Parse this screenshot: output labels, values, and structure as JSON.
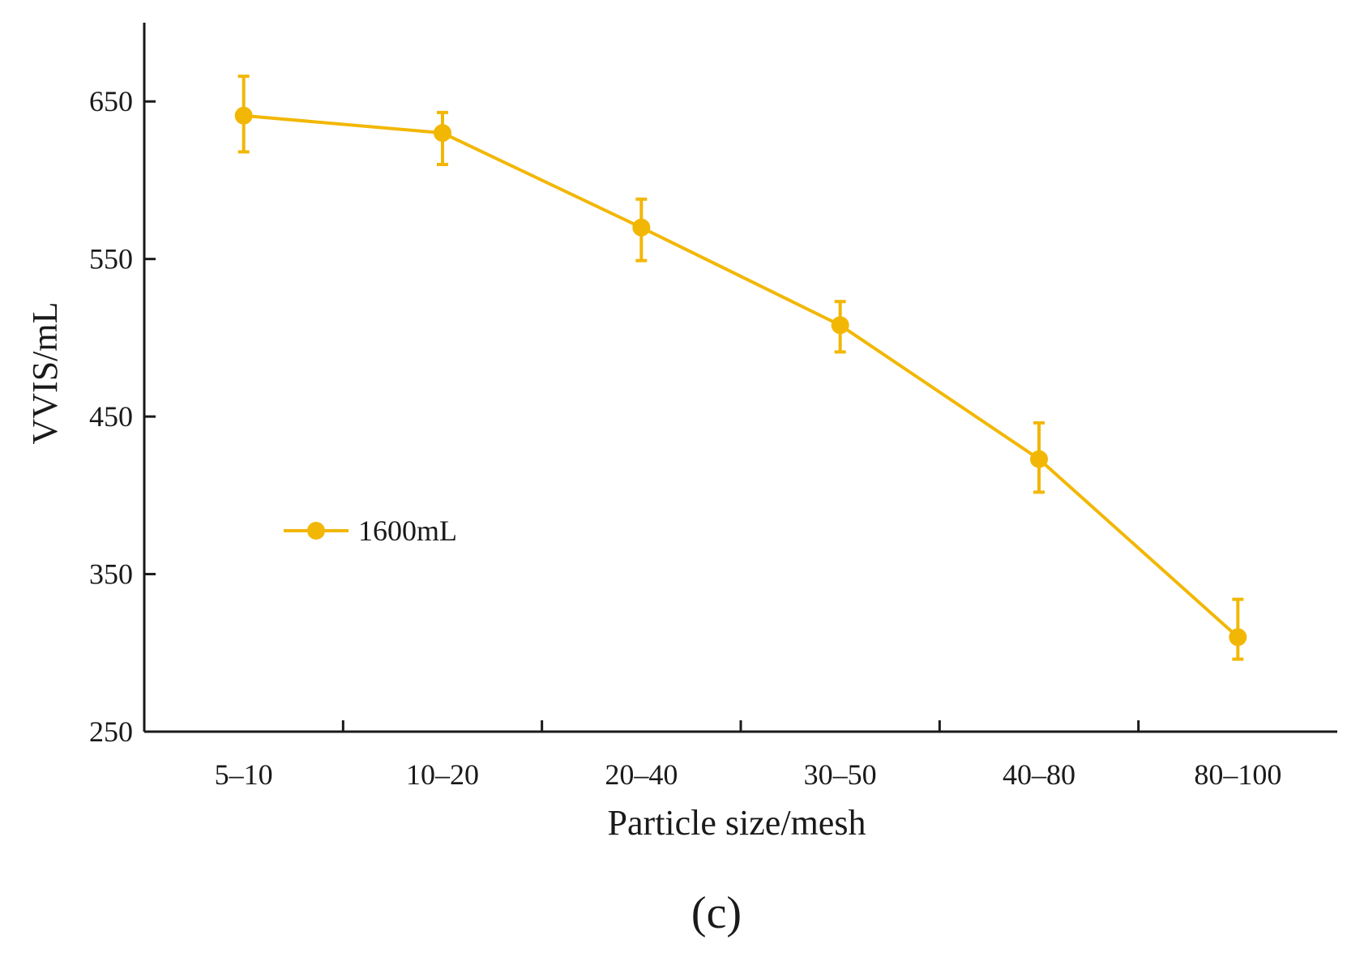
{
  "chart_data": {
    "type": "line",
    "title": "",
    "xlabel": "Particle size/mesh",
    "ylabel": "VVIS/mL",
    "categories": [
      "5–10",
      "10–20",
      "20–40",
      "30–50",
      "40–80",
      "80–100"
    ],
    "series": [
      {
        "name": "1600mL",
        "color": "#F2B705",
        "values": [
          641,
          630,
          570,
          508,
          423,
          310
        ],
        "error_low": [
          23,
          20,
          21,
          17,
          21,
          14
        ],
        "error_high": [
          25,
          13,
          18,
          15,
          23,
          24
        ]
      }
    ],
    "ylim": [
      250,
      700
    ],
    "yticks": [
      250,
      350,
      450,
      550,
      650
    ],
    "legend": "center-left",
    "grid": false,
    "panel_label": "(c)"
  }
}
